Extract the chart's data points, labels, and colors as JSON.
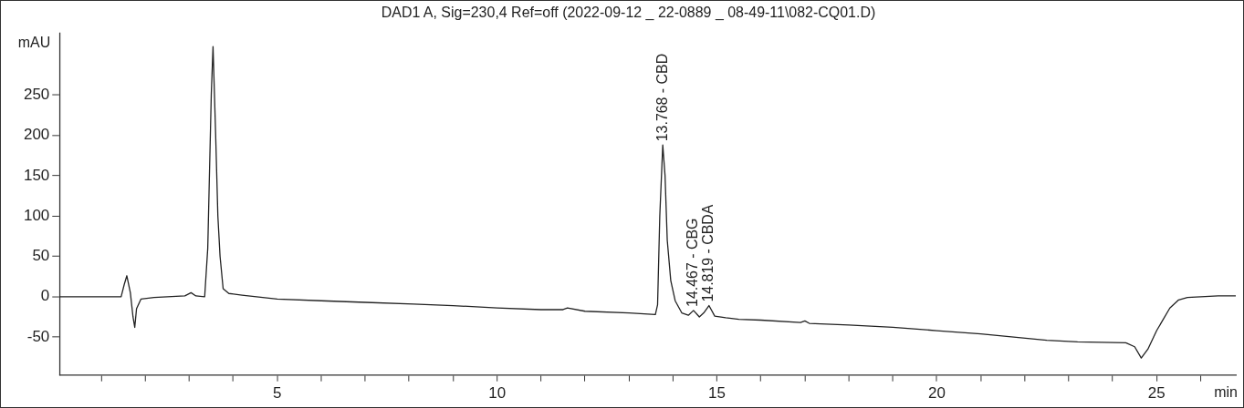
{
  "chart_data": {
    "type": "line",
    "title": "DAD1 A, Sig=230,4 Ref=off (2022-09-12 _ 22-0889 _ 08-49-11\\082-CQ01.D)",
    "xlabel": "min",
    "ylabel": "mAU",
    "x": [
      0.05,
      1.0,
      1.45,
      1.52,
      1.58,
      1.66,
      1.72,
      1.76,
      1.8,
      1.9,
      2.2,
      2.9,
      3.04,
      3.15,
      3.35,
      3.42,
      3.5,
      3.54,
      3.6,
      3.65,
      3.7,
      3.77,
      3.9,
      4.2,
      5,
      6,
      7,
      8.1,
      9,
      10,
      11,
      11.5,
      11.6,
      12,
      13,
      13.6,
      13.65,
      13.7,
      13.768,
      13.82,
      13.87,
      13.95,
      14.05,
      14.2,
      14.35,
      14.467,
      14.6,
      14.7,
      14.819,
      14.95,
      15.2,
      15.5,
      16,
      16.9,
      17,
      17.1,
      18,
      19,
      20,
      21,
      22.5,
      23.2,
      24.3,
      24.5,
      24.65,
      24.8,
      25,
      25.3,
      25.5,
      25.7,
      26,
      26.4,
      26.8
    ],
    "series": [
      {
        "color": "#222222",
        "values": [
          0,
          0,
          0,
          15,
          26,
          5,
          -25,
          -38,
          -15,
          -3,
          -1,
          1,
          5,
          1,
          0,
          60,
          250,
          310,
          200,
          100,
          50,
          10,
          4,
          2,
          -3,
          -5,
          -7,
          -9,
          -11,
          -14,
          -16,
          -16,
          -14,
          -18,
          -20,
          -22,
          -10,
          100,
          188,
          150,
          70,
          20,
          -5,
          -20,
          -23,
          -17,
          -25,
          -20,
          -11,
          -24,
          -26,
          -28,
          -29,
          -32,
          -30,
          -33,
          -35,
          -38,
          -42,
          -46,
          -54,
          -56,
          -57,
          -62,
          -76,
          -65,
          -42,
          -14,
          -4,
          -1,
          0,
          1,
          1
        ]
      }
    ],
    "xlim": [
      0.05,
      26.8
    ],
    "xticks": [
      {
        "value": 1,
        "label": null
      },
      {
        "value": 2,
        "label": null
      },
      {
        "value": 3,
        "label": null
      },
      {
        "value": 4,
        "label": null
      },
      5,
      {
        "value": 6,
        "label": null
      },
      {
        "value": 7,
        "label": null
      },
      {
        "value": 8,
        "label": null
      },
      {
        "value": 9,
        "label": null
      },
      10,
      {
        "value": 11,
        "label": null
      },
      {
        "value": 12,
        "label": null
      },
      {
        "value": 13,
        "label": null
      },
      {
        "value": 14,
        "label": null
      },
      15,
      {
        "value": 16,
        "label": null
      },
      {
        "value": 17,
        "label": null
      },
      {
        "value": 18,
        "label": null
      },
      {
        "value": 19,
        "label": null
      },
      20,
      {
        "value": 21,
        "label": null
      },
      {
        "value": 22,
        "label": null
      },
      {
        "value": 23,
        "label": null
      },
      {
        "value": 24,
        "label": null
      },
      25,
      {
        "value": 26,
        "label": null
      }
    ],
    "ylim": [
      -97,
      327
    ],
    "yticks": [
      -50,
      0,
      50,
      100,
      150,
      200,
      250
    ],
    "annotations": [
      {
        "text": "13.768 - CBD",
        "x": 13.768,
        "y": 188
      },
      {
        "text": "14.467 - CBG",
        "x": 14.467,
        "y": -17
      },
      {
        "text": "14.819 - CBDA",
        "x": 14.819,
        "y": -11
      }
    ],
    "marker": "none",
    "line_style": "solid",
    "grid": false,
    "legend": false
  }
}
